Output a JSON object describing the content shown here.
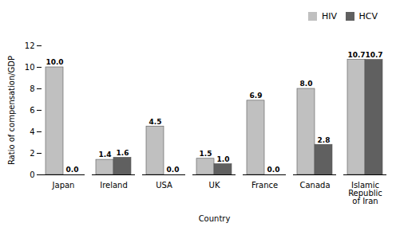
{
  "chart_data": {
    "type": "bar",
    "categories": [
      "Japan",
      "Ireland",
      "USA",
      "UK",
      "France",
      "Canada",
      "Islamic\nRepublic\nof Iran"
    ],
    "series": [
      {
        "name": "HIV",
        "color": "#c0c0c0",
        "values": [
          10.0,
          1.4,
          4.5,
          1.5,
          6.9,
          8.0,
          10.7
        ],
        "value_labels": [
          "10.0",
          "1.4",
          "4.5",
          "1.5",
          "6.9",
          "8.0",
          "10.7"
        ]
      },
      {
        "name": "HCV",
        "color": "#606060",
        "values": [
          0.0,
          1.6,
          0.0,
          1.0,
          0.0,
          2.8,
          10.7
        ],
        "value_labels": [
          "0.0",
          "1.6",
          "0.0",
          "1.0",
          "0.0",
          "2.8",
          "10.7"
        ]
      }
    ],
    "xlabel": "Country",
    "ylabel": "Ratio of compensation/GDP",
    "ylim": [
      0,
      12
    ],
    "yticks": [
      0,
      2,
      4,
      6,
      8,
      10,
      12
    ],
    "grid": false,
    "legend": "upper right",
    "data_labels": true
  }
}
